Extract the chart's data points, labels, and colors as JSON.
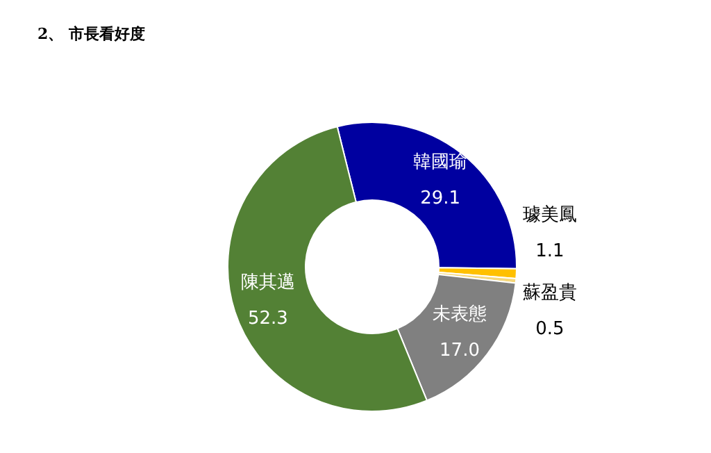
{
  "chart_data": {
    "type": "donut",
    "title": "2、 市長看好度",
    "categories": [
      "韓國瑜",
      "璩美鳳",
      "蘇盈貴",
      "未表態",
      "陳其邁"
    ],
    "values": [
      29.1,
      1.1,
      0.5,
      17.0,
      52.3
    ],
    "colors": [
      "#0000a0",
      "#ffc000",
      "#f5d77a",
      "#808080",
      "#538135"
    ],
    "value_labels": [
      "29.1",
      "1.1",
      "0.5",
      "17.0",
      "52.3"
    ],
    "legend": false
  }
}
